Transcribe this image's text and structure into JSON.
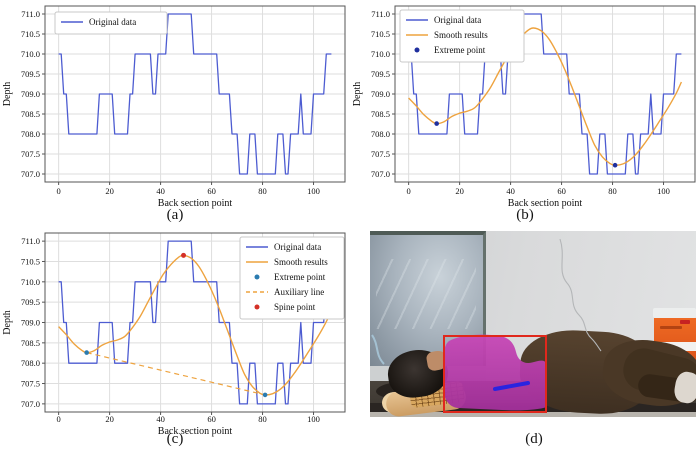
{
  "figure": {
    "captions": {
      "a": "(a)",
      "b": "(b)",
      "c": "(c)",
      "d": "(d)"
    }
  },
  "colors": {
    "background": "#ffffff",
    "grid": "#dedede",
    "axis": "#555555",
    "text": "#111111",
    "legend_border": "#c8c8c8",
    "original_line": "#4d5cd1",
    "smooth_line": "#eea33f",
    "extreme_point_b": "#1f2f9e",
    "extreme_point_c": "#2b7bb0",
    "auxiliary_line": "#eea33f",
    "spine_point": "#d43027"
  },
  "series_bank": {
    "original": {
      "label": "Original data",
      "kind": "step",
      "color": "#4d5cd1",
      "segments": [
        [
          0,
          1,
          710
        ],
        [
          2,
          3,
          709
        ],
        [
          4,
          15,
          708
        ],
        [
          16,
          21,
          709
        ],
        [
          22,
          27,
          708
        ],
        [
          28,
          29,
          709
        ],
        [
          30,
          36,
          710
        ],
        [
          37,
          38,
          709
        ],
        [
          39,
          42,
          710
        ],
        [
          43,
          52,
          711
        ],
        [
          53,
          62,
          710
        ],
        [
          63,
          67,
          709
        ],
        [
          68,
          70,
          708
        ],
        [
          71,
          74,
          707
        ],
        [
          75,
          77,
          708
        ],
        [
          78,
          85,
          707
        ],
        [
          86,
          88,
          708
        ],
        [
          89,
          90,
          707
        ],
        [
          91,
          94,
          708
        ],
        [
          95,
          95,
          709
        ],
        [
          96,
          99,
          708
        ],
        [
          100,
          104,
          709
        ],
        [
          105,
          107,
          710
        ]
      ]
    },
    "smooth": {
      "label": "Smooth results",
      "kind": "curve",
      "color": "#eea33f",
      "points": [
        [
          0,
          708.9
        ],
        [
          3,
          708.7
        ],
        [
          6,
          708.48
        ],
        [
          9,
          708.32
        ],
        [
          11,
          708.26
        ],
        [
          14,
          708.31
        ],
        [
          17,
          708.44
        ],
        [
          20,
          708.52
        ],
        [
          23,
          708.57
        ],
        [
          26,
          708.66
        ],
        [
          29,
          708.88
        ],
        [
          32,
          709.15
        ],
        [
          35,
          709.5
        ],
        [
          38,
          709.85
        ],
        [
          41,
          710.18
        ],
        [
          44,
          710.42
        ],
        [
          47,
          710.6
        ],
        [
          49,
          710.65
        ],
        [
          52,
          710.58
        ],
        [
          55,
          710.38
        ],
        [
          58,
          710.05
        ],
        [
          61,
          709.65
        ],
        [
          64,
          709.18
        ],
        [
          67,
          708.68
        ],
        [
          70,
          708.18
        ],
        [
          73,
          707.72
        ],
        [
          76,
          707.43
        ],
        [
          79,
          707.26
        ],
        [
          81,
          707.22
        ],
        [
          84,
          707.25
        ],
        [
          87,
          707.36
        ],
        [
          90,
          707.55
        ],
        [
          93,
          707.8
        ],
        [
          96,
          708.08
        ],
        [
          99,
          708.38
        ],
        [
          102,
          708.68
        ],
        [
          105,
          709.02
        ],
        [
          107,
          709.3
        ]
      ]
    },
    "extreme_b": {
      "label": "Extreme point",
      "kind": "scatter",
      "color": "#1f2f9e",
      "r": 2.3,
      "points": [
        [
          11,
          708.26
        ],
        [
          81,
          707.22
        ]
      ]
    },
    "extreme_c": {
      "label": "Extreme point",
      "kind": "scatter",
      "color": "#2b7bb0",
      "r": 2.3,
      "points": [
        [
          11,
          708.26
        ],
        [
          81,
          707.22
        ]
      ]
    },
    "auxiliary": {
      "label": "Auxiliary line",
      "kind": "dash",
      "color": "#eea33f",
      "points": [
        [
          11,
          708.26
        ],
        [
          81,
          707.22
        ]
      ]
    },
    "spine": {
      "label": "Spine point",
      "kind": "scatter",
      "color": "#d43027",
      "r": 2.5,
      "points": [
        [
          49,
          710.65
        ]
      ]
    }
  },
  "chart_data": [
    {
      "id": "a",
      "type": "line",
      "xlabel": "Back section point",
      "ylabel": "Depth",
      "xlim": [
        -5.35,
        112.35
      ],
      "ylim": [
        706.8,
        711.2
      ],
      "xticks": [
        0,
        20,
        40,
        60,
        80,
        100
      ],
      "yticks": [
        707.0,
        707.5,
        708.0,
        708.5,
        709.0,
        709.5,
        710.0,
        710.5,
        711.0
      ],
      "grid": true,
      "legend_position": "upper left",
      "draw": [
        "original"
      ],
      "legend": [
        "original"
      ]
    },
    {
      "id": "b",
      "type": "line",
      "xlabel": "Back section point",
      "ylabel": "Depth",
      "xlim": [
        -5.35,
        112.35
      ],
      "ylim": [
        706.8,
        711.2
      ],
      "xticks": [
        0,
        20,
        40,
        60,
        80,
        100
      ],
      "yticks": [
        707.0,
        707.5,
        708.0,
        708.5,
        709.0,
        709.5,
        710.0,
        710.5,
        711.0
      ],
      "grid": true,
      "legend_position": "upper left",
      "draw": [
        "original",
        "smooth",
        "extreme_b"
      ],
      "legend": [
        "original",
        "smooth",
        "extreme_b"
      ]
    },
    {
      "id": "c",
      "type": "line",
      "xlabel": "Back section point",
      "ylabel": "Depth",
      "xlim": [
        -5.35,
        112.35
      ],
      "ylim": [
        706.8,
        711.2
      ],
      "xticks": [
        0,
        20,
        40,
        60,
        80,
        100
      ],
      "yticks": [
        707.0,
        707.5,
        708.0,
        708.5,
        709.0,
        709.5,
        710.0,
        710.5,
        711.0
      ],
      "grid": true,
      "legend_position": "upper right",
      "draw": [
        "original",
        "smooth",
        "auxiliary",
        "extreme_c",
        "spine"
      ],
      "legend": [
        "original",
        "smooth",
        "extreme_c",
        "auxiliary",
        "spine"
      ]
    }
  ],
  "photo": {
    "description": "Person lying on side on a treatment bed; segmented back region highlighted with detection box and spine direction line",
    "back_mask_color": "#b93aad",
    "detection_box_color": "#e0281c",
    "spine_line_color": "#2a24e0"
  }
}
